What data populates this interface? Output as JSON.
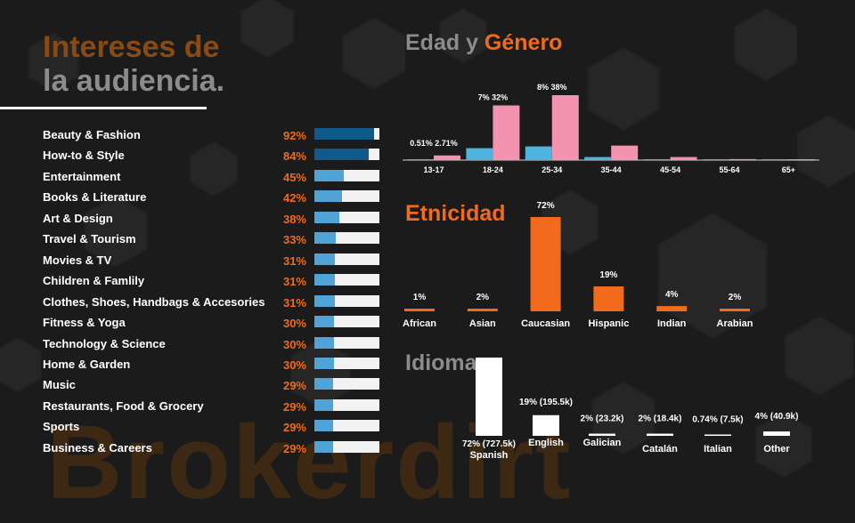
{
  "page": {
    "title_line1": "Intereses de",
    "title_line2": "la audiencia.",
    "watermark": "Brokerdirt"
  },
  "colors": {
    "orange": "#f26a1b",
    "male_blue": "#4fb3e0",
    "female_pink": "#f293b0",
    "bar_dark_blue": "#0f5a8a",
    "bar_light_blue": "#4fa3d6",
    "track": "#f2f2f2"
  },
  "interests": [
    {
      "label": "Beauty & Fashion",
      "pct": "92%",
      "value": 92
    },
    {
      "label": "How-to & Style",
      "pct": "84%",
      "value": 84
    },
    {
      "label": "Entertainment",
      "pct": "45%",
      "value": 45
    },
    {
      "label": "Books & Literature",
      "pct": "42%",
      "value": 42
    },
    {
      "label": "Art & Design",
      "pct": "38%",
      "value": 38
    },
    {
      "label": "Travel & Tourism",
      "pct": "33%",
      "value": 33
    },
    {
      "label": "Movies & TV",
      "pct": "31%",
      "value": 31
    },
    {
      "label": "Children & Famlily",
      "pct": "31%",
      "value": 31
    },
    {
      "label": "Clothes, Shoes, Handbags & Accesories",
      "pct": "31%",
      "value": 31
    },
    {
      "label": "Fitness & Yoga",
      "pct": "30%",
      "value": 30
    },
    {
      "label": "Technology & Science",
      "pct": "30%",
      "value": 30
    },
    {
      "label": "Home & Garden",
      "pct": "30%",
      "value": 30
    },
    {
      "label": "Music",
      "pct": "29%",
      "value": 29
    },
    {
      "label": "Restaurants, Food & Grocery",
      "pct": "29%",
      "value": 29
    },
    {
      "label": "Sports",
      "pct": "29%",
      "value": 29
    },
    {
      "label": "Business & Careers",
      "pct": "29%",
      "value": 29
    }
  ],
  "sections": {
    "age_title_a": "Edad y ",
    "age_title_b": "Género",
    "ethnicity_title": "Etnicidad",
    "language_title": "Idioma"
  },
  "chart_data": [
    {
      "type": "bar",
      "title": "Edad y Género",
      "categories": [
        "13-17",
        "18-24",
        "25-34",
        "35-44",
        "45-54",
        "55-64",
        "65+"
      ],
      "series": [
        {
          "values": [
            0.51,
            7,
            8,
            1.8,
            0.5,
            0.2,
            0.15
          ]
        },
        {
          "values": [
            2.71,
            32,
            38,
            8.5,
            1.8,
            0.6,
            0.4
          ]
        }
      ],
      "data_labels": [
        "0.51% 2.71%",
        "7% 32%",
        "8% 38%",
        "",
        "",
        "",
        ""
      ]
    },
    {
      "type": "bar",
      "title": "Etnicidad",
      "categories": [
        "African",
        "Asian",
        "Caucasian",
        "Hispanic",
        "Indian",
        "Arabian"
      ],
      "values": [
        1,
        2,
        72,
        19,
        4,
        2
      ],
      "labels": [
        "1%",
        "2%",
        "72%",
        "19%",
        "4%",
        "2%"
      ]
    },
    {
      "type": "bar",
      "title": "Idioma",
      "categories": [
        "Spanish",
        "English",
        "Galician",
        "Catalán",
        "Italian",
        "Other"
      ],
      "values": [
        72,
        19,
        2,
        2,
        0.74,
        4
      ],
      "labels": [
        "72% (727.5k)",
        "19% (195.5k)",
        "2% (23.2k)",
        "2% (18.4k)",
        "0.74% (7.5k)",
        "4% (40.9k)"
      ]
    }
  ]
}
